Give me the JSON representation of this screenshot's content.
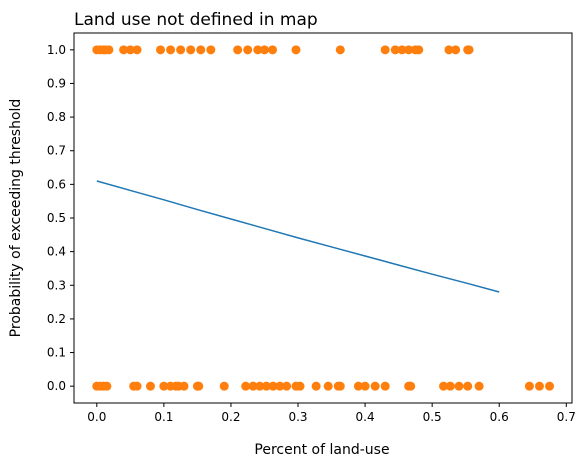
{
  "chart_data": {
    "type": "scatter",
    "title": "Land use not defined in map",
    "xlabel": "Percent of land-use",
    "ylabel": "Probability of exceeding threshold",
    "xlim": [
      -0.034,
      0.7085
    ],
    "ylim": [
      -0.05,
      1.05
    ],
    "x_ticks": [
      0.0,
      0.1,
      0.2,
      0.3,
      0.4,
      0.5,
      0.6,
      0.7
    ],
    "x_tick_labels": [
      "0.0",
      "0.1",
      "0.2",
      "0.3",
      "0.4",
      "0.5",
      "0.6",
      "0.7"
    ],
    "y_ticks": [
      0.0,
      0.1,
      0.2,
      0.3,
      0.4,
      0.5,
      0.6,
      0.7,
      0.8,
      0.9,
      1.0
    ],
    "y_tick_labels": [
      "0.0",
      "0.1",
      "0.2",
      "0.3",
      "0.4",
      "0.5",
      "0.6",
      "0.7",
      "0.8",
      "0.9",
      "1.0"
    ],
    "grid": false,
    "legend": "none",
    "colors": {
      "points": "#ff7f0e",
      "curve": "#1f77b4",
      "axis": "#000000"
    },
    "series": [
      {
        "type": "scatter",
        "points": [
          [
            0.0,
            1
          ],
          [
            0.005,
            1
          ],
          [
            0.01,
            1
          ],
          [
            0.013,
            1
          ],
          [
            0.018,
            1
          ],
          [
            0.04,
            1
          ],
          [
            0.05,
            1
          ],
          [
            0.06,
            1
          ],
          [
            0.095,
            1
          ],
          [
            0.11,
            1
          ],
          [
            0.125,
            1
          ],
          [
            0.14,
            1
          ],
          [
            0.155,
            1
          ],
          [
            0.17,
            1
          ],
          [
            0.21,
            1
          ],
          [
            0.225,
            1
          ],
          [
            0.24,
            1
          ],
          [
            0.25,
            1
          ],
          [
            0.262,
            1
          ],
          [
            0.297,
            1
          ],
          [
            0.363,
            1
          ],
          [
            0.43,
            1
          ],
          [
            0.445,
            1
          ],
          [
            0.455,
            1
          ],
          [
            0.465,
            1
          ],
          [
            0.475,
            1
          ],
          [
            0.48,
            1
          ],
          [
            0.525,
            1
          ],
          [
            0.535,
            1
          ],
          [
            0.553,
            1
          ],
          [
            0.555,
            1
          ],
          [
            0.0,
            0
          ],
          [
            0.005,
            0
          ],
          [
            0.01,
            0
          ],
          [
            0.015,
            0
          ],
          [
            0.055,
            0
          ],
          [
            0.06,
            0
          ],
          [
            0.08,
            0
          ],
          [
            0.1,
            0
          ],
          [
            0.11,
            0
          ],
          [
            0.118,
            0
          ],
          [
            0.122,
            0
          ],
          [
            0.13,
            0
          ],
          [
            0.15,
            0
          ],
          [
            0.152,
            0
          ],
          [
            0.19,
            0
          ],
          [
            0.222,
            0
          ],
          [
            0.233,
            0
          ],
          [
            0.243,
            0
          ],
          [
            0.253,
            0
          ],
          [
            0.263,
            0
          ],
          [
            0.273,
            0
          ],
          [
            0.283,
            0
          ],
          [
            0.297,
            0
          ],
          [
            0.303,
            0
          ],
          [
            0.327,
            0
          ],
          [
            0.345,
            0
          ],
          [
            0.36,
            0
          ],
          [
            0.363,
            0
          ],
          [
            0.39,
            0
          ],
          [
            0.4,
            0
          ],
          [
            0.415,
            0
          ],
          [
            0.43,
            0
          ],
          [
            0.465,
            0
          ],
          [
            0.468,
            0
          ],
          [
            0.517,
            0
          ],
          [
            0.527,
            0
          ],
          [
            0.54,
            0
          ],
          [
            0.553,
            0
          ],
          [
            0.57,
            0
          ],
          [
            0.645,
            0
          ],
          [
            0.66,
            0
          ],
          [
            0.675,
            0
          ]
        ]
      },
      {
        "type": "line",
        "x": [
          0.0,
          0.05,
          0.1,
          0.15,
          0.2,
          0.25,
          0.3,
          0.35,
          0.4,
          0.45,
          0.5,
          0.55,
          0.6
        ],
        "y": [
          0.61,
          0.582,
          0.554,
          0.525,
          0.497,
          0.469,
          0.441,
          0.414,
          0.387,
          0.36,
          0.333,
          0.307,
          0.28
        ]
      }
    ]
  }
}
